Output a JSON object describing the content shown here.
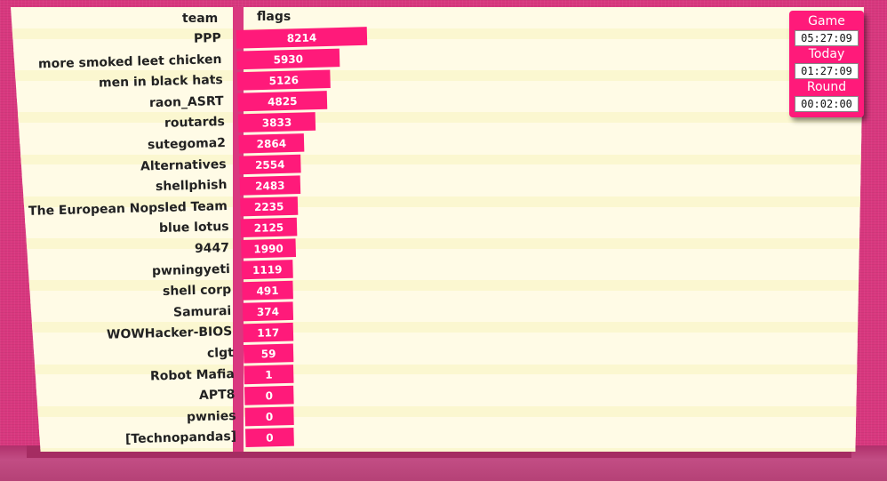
{
  "header": {
    "team_col": "team",
    "flags_col": "flags"
  },
  "timers": [
    {
      "label": "Game",
      "value": "05:27:09"
    },
    {
      "label": "Today",
      "value": "01:27:09"
    },
    {
      "label": "Round",
      "value": "00:02:00"
    }
  ],
  "colors": {
    "bar": "#ff1a7a",
    "background": "#d9387f",
    "stripe": "#fffbe6"
  },
  "chart_data": {
    "type": "bar",
    "orientation": "horizontal",
    "xlabel": "flags",
    "ylabel": "team",
    "categories": [
      "PPP",
      "more smoked leet chicken",
      "men in black hats",
      "raon_ASRT",
      "routards",
      "sutegoma2",
      "Alternatives",
      "shellphish",
      "The European Nopsled Team",
      "blue lotus",
      "9447",
      "pwningyeti",
      "shell corp",
      "Samurai",
      "WOWHacker-BIOS",
      "clgt",
      "Robot Mafia",
      "APT8",
      "pwnies",
      "[Technopandas]"
    ],
    "values": [
      8214,
      5930,
      5126,
      4825,
      3833,
      2864,
      2554,
      2483,
      2235,
      2125,
      1990,
      1119,
      491,
      374,
      117,
      59,
      1,
      0,
      0,
      0
    ]
  }
}
